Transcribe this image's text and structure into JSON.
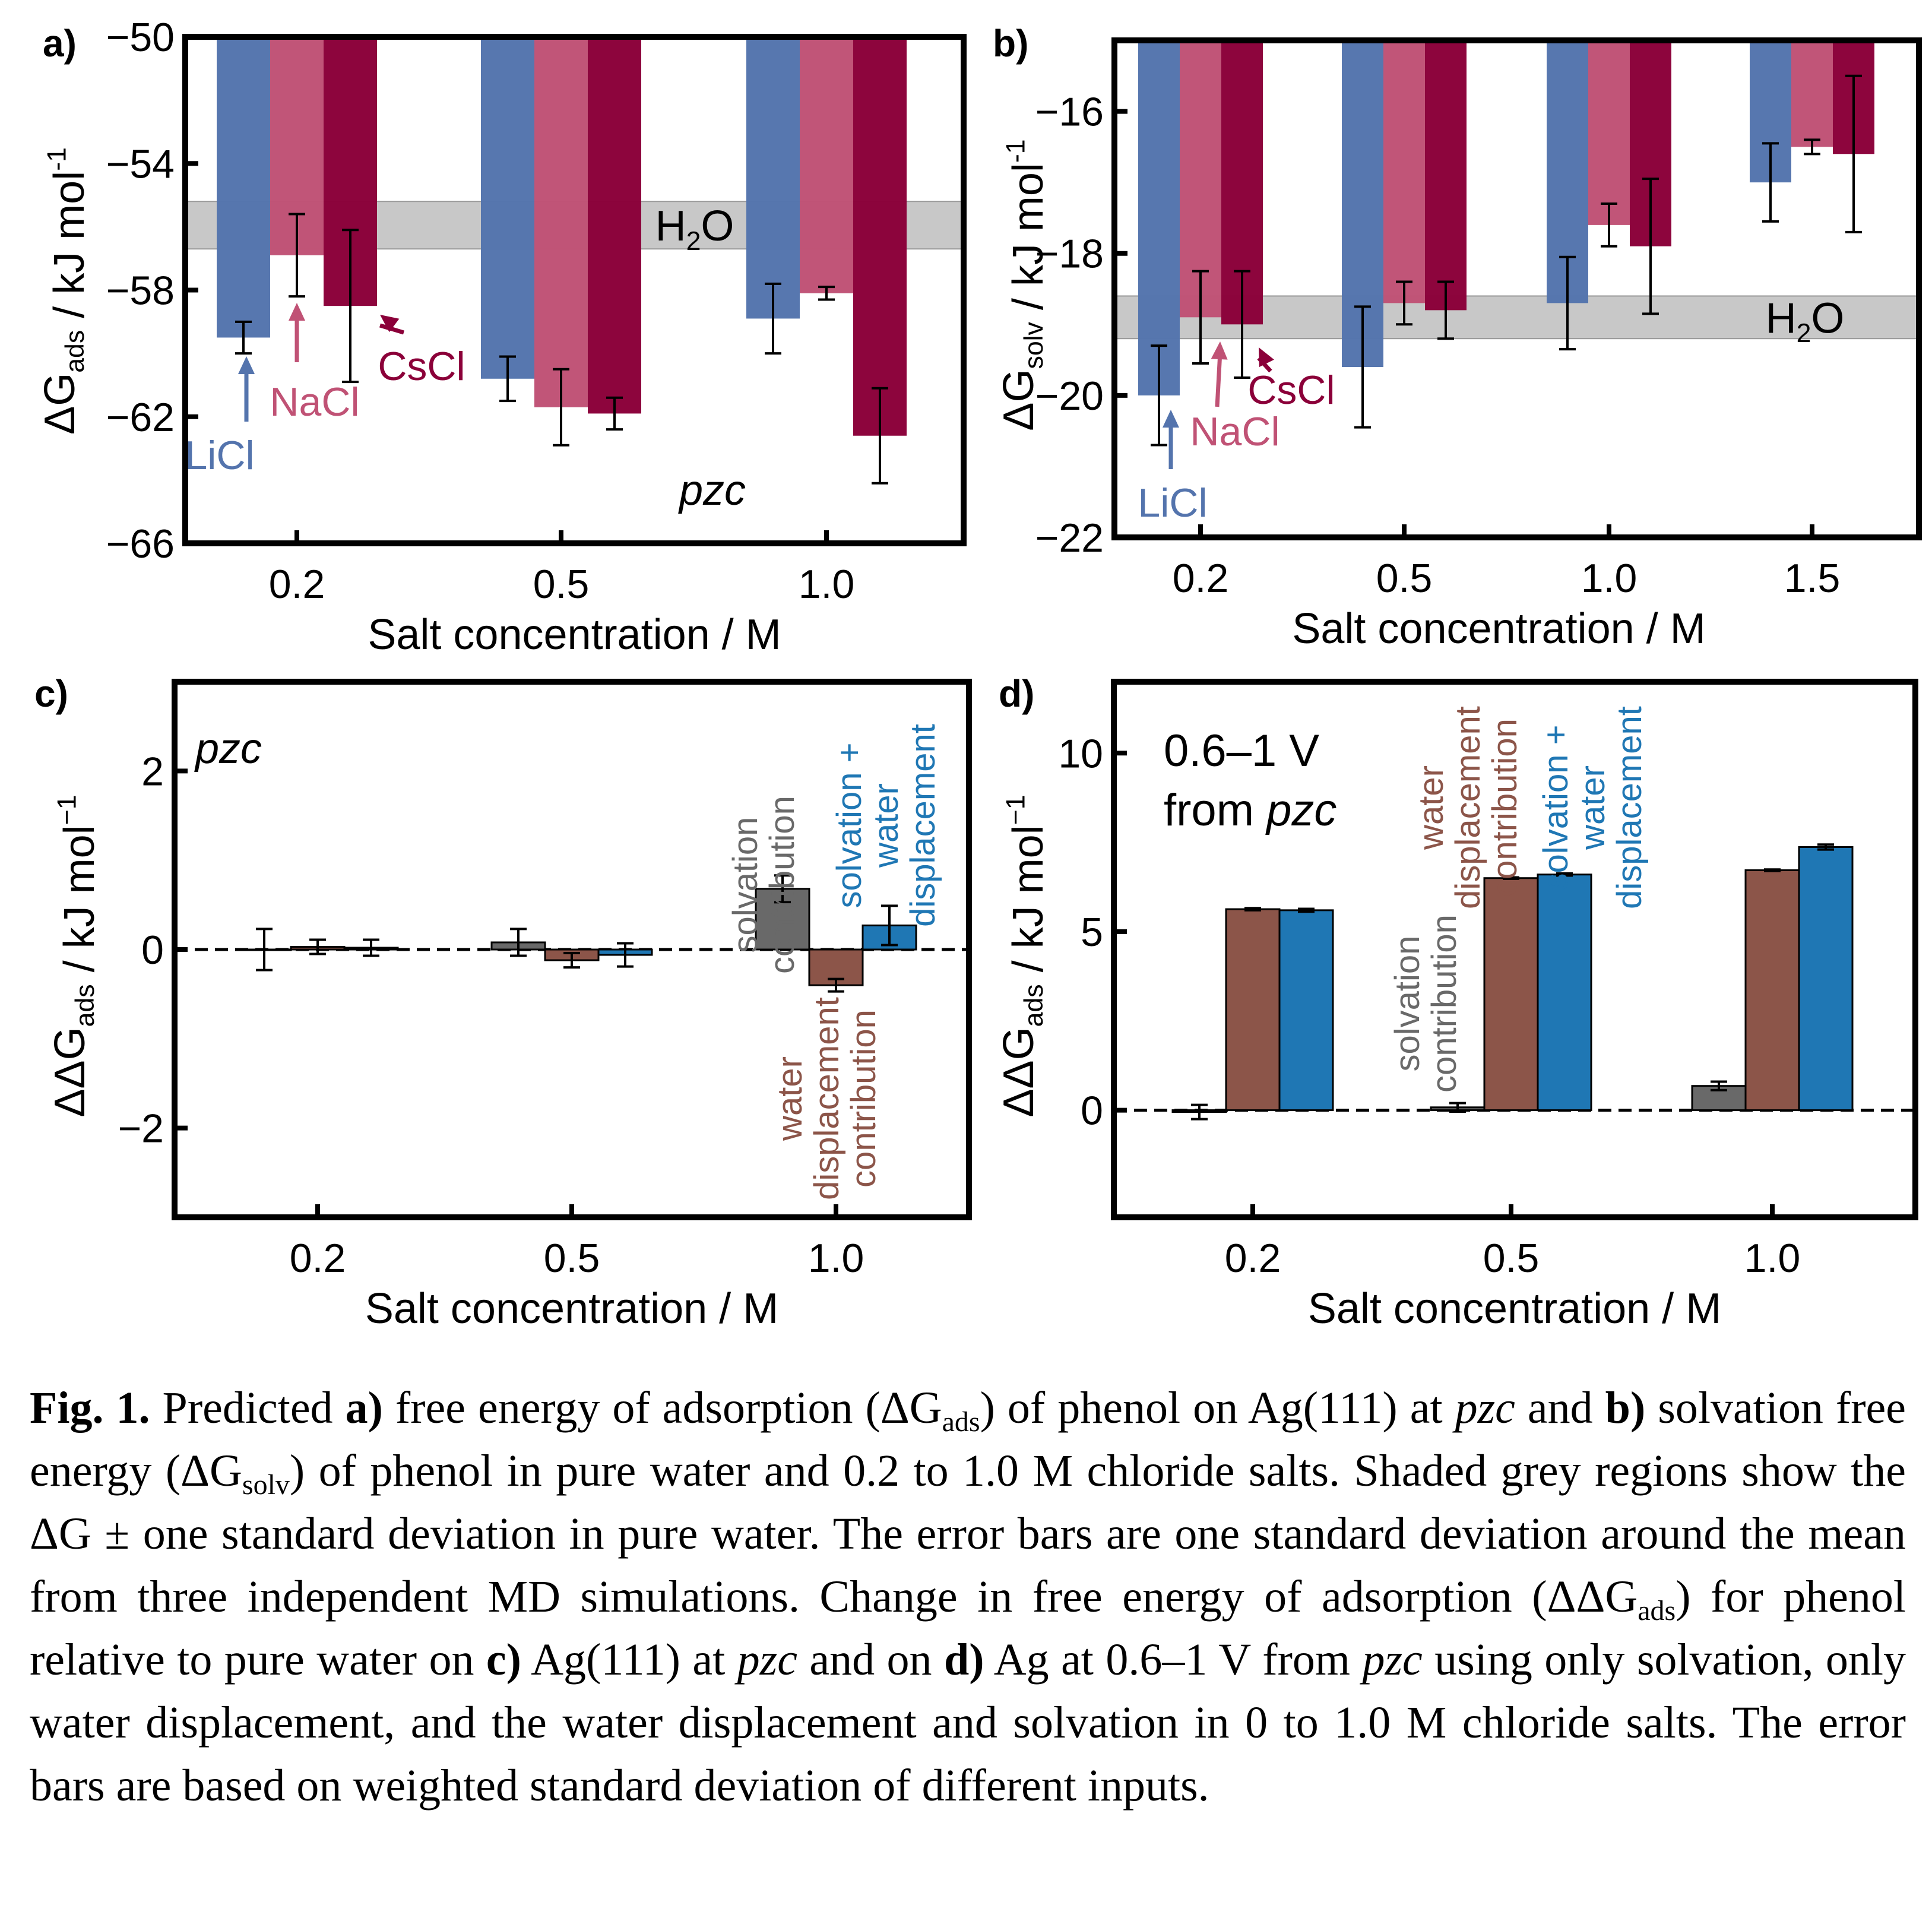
{
  "colors": {
    "LiCl": "#5474ad",
    "NaCl": "#c05275",
    "CsCl": "#8b0039",
    "solvation": "#696969",
    "water_displacement": "#8c5549",
    "combined": "#1f77b4",
    "water_band": "#c8c8c8"
  },
  "chart_data": [
    {
      "panel": "a)",
      "type": "bar",
      "xlabel": "Salt concentration / M",
      "ylabel": "ΔG_ads / kJ mol-1",
      "categories": [
        "0.2",
        "0.5",
        "1.0"
      ],
      "ylim": [
        -66,
        -50
      ],
      "yticks": [
        "−50",
        "−54",
        "−58",
        "−62",
        "−66"
      ],
      "ytick_values": [
        -50,
        -54,
        -58,
        -62,
        -66
      ],
      "series": [
        {
          "name": "LiCl",
          "values": [
            -59.5,
            -60.8,
            -58.9
          ],
          "errors": [
            0.5,
            0.7,
            1.1
          ]
        },
        {
          "name": "NaCl",
          "values": [
            -56.9,
            -61.7,
            -58.1
          ],
          "errors": [
            1.3,
            1.2,
            0.2
          ]
        },
        {
          "name": "CsCl",
          "values": [
            -58.5,
            -61.9,
            -62.6
          ],
          "errors": [
            2.4,
            0.5,
            1.5
          ]
        }
      ],
      "band": {
        "label_main": "H",
        "label_sub": "2",
        "label_end": "O",
        "range": [
          -56.7,
          -55.2
        ]
      },
      "annotations": [
        "LiCl",
        "NaCl",
        "CsCl"
      ],
      "extra_label": "pzc"
    },
    {
      "panel": "b)",
      "type": "bar",
      "xlabel": "Salt concentration / M",
      "ylabel": "ΔG_solv / kJ mol-1",
      "categories": [
        "0.2",
        "0.5",
        "1.0",
        "1.5"
      ],
      "ylim": [
        -22,
        -15
      ],
      "yticks": [
        "−16",
        "−18",
        "−20",
        "−22"
      ],
      "ytick_values": [
        -16,
        -18,
        -20,
        -22
      ],
      "series": [
        {
          "name": "LiCl",
          "values": [
            -20.0,
            -19.6,
            -18.7,
            -17.0
          ],
          "errors": [
            0.7,
            0.85,
            0.65,
            0.55
          ]
        },
        {
          "name": "NaCl",
          "values": [
            -18.9,
            -18.7,
            -17.6,
            -16.5
          ],
          "errors": [
            0.65,
            0.3,
            0.3,
            0.1
          ]
        },
        {
          "name": "CsCl",
          "values": [
            -19.0,
            -18.8,
            -17.9,
            -16.6
          ],
          "errors": [
            0.75,
            0.4,
            0.95,
            1.1
          ]
        }
      ],
      "band": {
        "label_main": "H",
        "label_sub": "2",
        "label_end": "O",
        "range": [
          -19.2,
          -18.6
        ]
      },
      "annotations": [
        "LiCl",
        "NaCl",
        "CsCl"
      ]
    },
    {
      "panel": "c)",
      "type": "bar",
      "xlabel": "Salt concentration / M",
      "ylabel": "ΔΔG_ads / kJ mol−1",
      "categories": [
        "0.2",
        "0.5",
        "1.0"
      ],
      "ylim": [
        -3,
        3
      ],
      "yticks": [
        "2",
        "0",
        "−2"
      ],
      "ytick_values": [
        2,
        0,
        -2
      ],
      "series": [
        {
          "name": "solvation contribution",
          "values": [
            0.0,
            0.08,
            0.68
          ],
          "errors": [
            0.23,
            0.15,
            0.15
          ]
        },
        {
          "name": "water displacement contribution",
          "values": [
            0.03,
            -0.12,
            -0.4
          ],
          "errors": [
            0.08,
            0.08,
            0.07
          ]
        },
        {
          "name": "solvation + water displacement",
          "values": [
            0.02,
            -0.06,
            0.27
          ],
          "errors": [
            0.09,
            0.13,
            0.22
          ]
        }
      ],
      "extra_label": "pzc",
      "text_labels": {
        "solvation": [
          "solvation",
          "contribution"
        ],
        "water": [
          "water",
          "displacement",
          "contribution"
        ],
        "combined": [
          "solvation +",
          "water",
          "displacement"
        ]
      }
    },
    {
      "panel": "d)",
      "type": "bar",
      "xlabel": "Salt concentration / M",
      "ylabel": "ΔΔG_ads / kJ mol−1",
      "categories": [
        "0.2",
        "0.5",
        "1.0"
      ],
      "ylim": [
        -3,
        12
      ],
      "yticks": [
        "10",
        "5",
        "0"
      ],
      "ytick_values": [
        10,
        5,
        0
      ],
      "series": [
        {
          "name": "solvation contribution",
          "values": [
            -0.05,
            0.08,
            0.68
          ],
          "errors": [
            0.2,
            0.12,
            0.12
          ]
        },
        {
          "name": "water displacement contribution",
          "values": [
            5.63,
            6.5,
            6.72
          ],
          "errors": [
            0.03,
            0.02,
            0.02
          ]
        },
        {
          "name": "solvation + water displacement",
          "values": [
            5.6,
            6.6,
            7.37
          ],
          "errors": [
            0.04,
            0.03,
            0.07
          ]
        }
      ],
      "extra_label_line1": "0.6–1 V",
      "extra_label_line2_pre": "from ",
      "extra_label_line2_it": "pzc",
      "text_labels": {
        "solvation": [
          "solvation",
          "contribution"
        ],
        "water": [
          "water",
          "displacement",
          "contribution"
        ],
        "combined": [
          "solvation +",
          "water",
          "displacement"
        ]
      }
    }
  ],
  "caption": {
    "fig": "Fig. 1.",
    "t1": " Predicted ",
    "a": "a)",
    "t2": " free energy of adsorption (ΔG",
    "s1": "ads",
    "t3": ") of phenol on Ag(111) at ",
    "pzc1": "pzc",
    "t4": " and ",
    "b": "b)",
    "t5": " solvation free energy (ΔG",
    "s2": "solv",
    "t6": ") of phenol in pure water and 0.2 to 1.0 M chloride salts. Shaded grey regions show the ΔG ± one standard deviation in pure water. The error bars are one standard deviation around the mean from three independent MD simulations. Change in free energy of adsorption (ΔΔG",
    "s3": "ads",
    "t7": ") for phenol relative to pure water on ",
    "c": "c)",
    "t8": " Ag(111) at ",
    "pzc2": "pzc",
    "t9": " and on ",
    "d": "d)",
    "t10": " Ag at 0.6–1 V from ",
    "pzc3": "pzc",
    "t11": " using only solvation, only water displacement, and the water displacement and solvation in 0 to 1.0 M chloride salts. The error bars are based on weighted standard deviation of different inputs."
  }
}
